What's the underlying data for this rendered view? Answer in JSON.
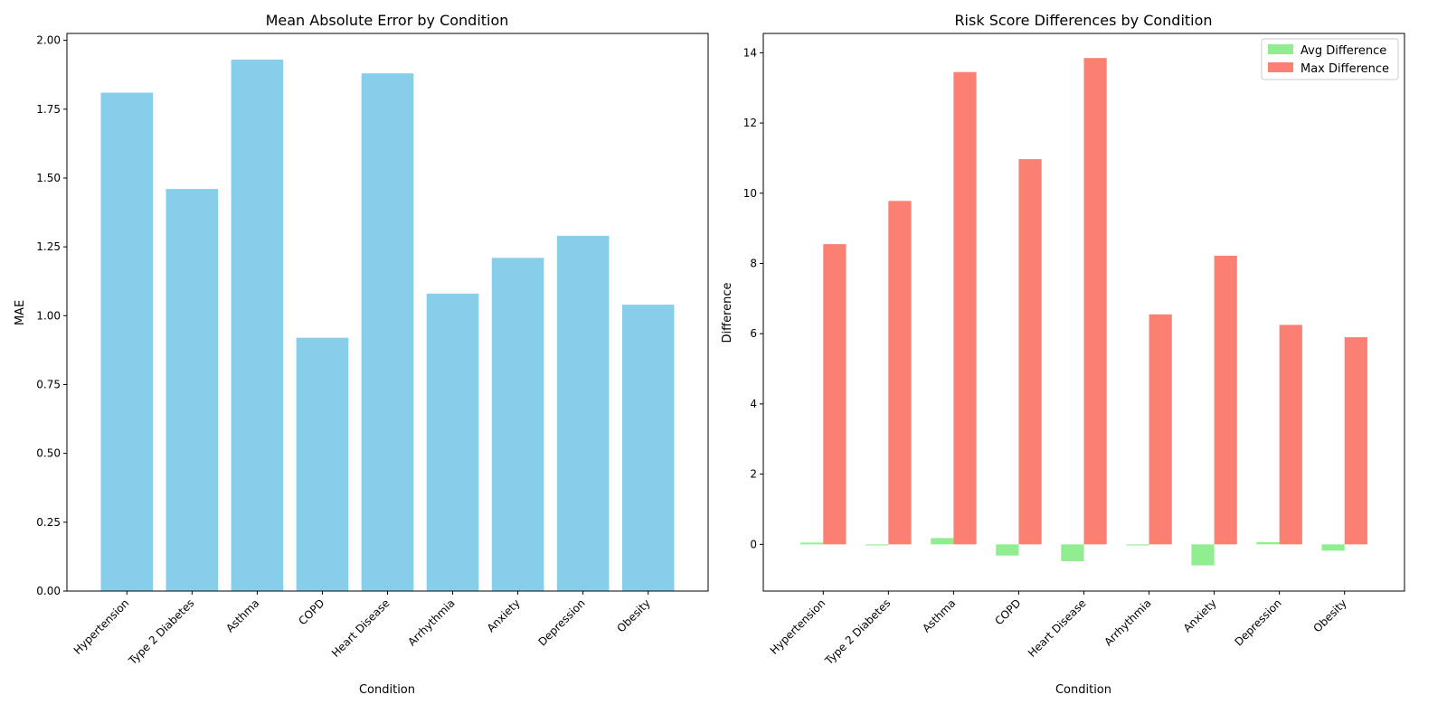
{
  "chart_data": [
    {
      "type": "bar",
      "title": "Mean Absolute Error by Condition",
      "xlabel": "Condition",
      "ylabel": "MAE",
      "ylim": [
        0,
        2.025
      ],
      "yticks": [
        "0.00",
        "0.25",
        "0.50",
        "0.75",
        "1.00",
        "1.25",
        "1.50",
        "1.75",
        "2.00"
      ],
      "grid": false,
      "categories": [
        "Hypertension",
        "Type 2 Diabetes",
        "Asthma",
        "COPD",
        "Heart Disease",
        "Arrhythmia",
        "Anxiety",
        "Depression",
        "Obesity"
      ],
      "series": [
        {
          "values": [
            1.81,
            1.46,
            1.93,
            0.92,
            1.88,
            1.08,
            1.21,
            1.29,
            1.04
          ],
          "color": "#87ceeb"
        }
      ]
    },
    {
      "type": "bar",
      "title": "Risk Score Differences by Condition",
      "xlabel": "Condition",
      "ylabel": "Difference",
      "ylim": [
        -1.33,
        14.55
      ],
      "yticks": [
        "0",
        "2",
        "4",
        "6",
        "8",
        "10",
        "12",
        "14"
      ],
      "grid": false,
      "legend": "top-right",
      "categories": [
        "Hypertension",
        "Type 2 Diabetes",
        "Asthma",
        "COPD",
        "Heart Disease",
        "Arrhythmia",
        "Anxiety",
        "Depression",
        "Obesity"
      ],
      "series": [
        {
          "name": "Avg Difference",
          "values": [
            0.05,
            -0.03,
            0.18,
            -0.32,
            -0.48,
            -0.03,
            -0.6,
            0.06,
            -0.18
          ],
          "color": "#90ee90"
        },
        {
          "name": "Max Difference",
          "values": [
            8.55,
            9.78,
            13.45,
            10.97,
            13.85,
            6.55,
            8.22,
            6.25,
            5.9
          ],
          "color": "#fa8072"
        }
      ]
    }
  ]
}
